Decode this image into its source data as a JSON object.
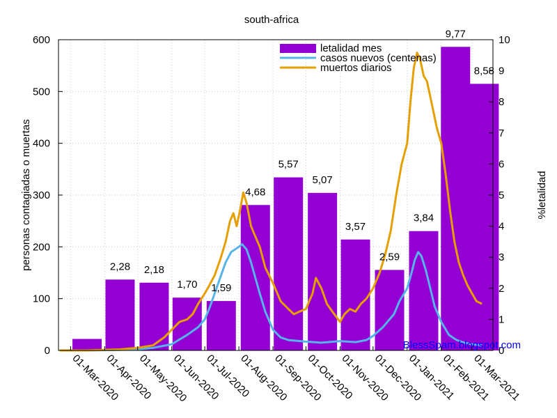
{
  "chart_data": {
    "type": "bar+line",
    "title": "south-africa",
    "ylabel_left": "personas contagiadas o muertas",
    "ylabel_right": "%letalidad",
    "ylim_left": [
      0,
      600
    ],
    "ylim_right": [
      0,
      10
    ],
    "yticks_left": [
      0,
      100,
      200,
      300,
      400,
      500,
      600
    ],
    "yticks_right": [
      0,
      1,
      2,
      3,
      4,
      5,
      6,
      7,
      8,
      9,
      10
    ],
    "xlim": [
      "2020-02-19",
      "2021-03-20"
    ],
    "xticks": [
      {
        "date": "2020-03-01",
        "label": "01-Mar-2020"
      },
      {
        "date": "2020-04-01",
        "label": "01-Apr-2020"
      },
      {
        "date": "2020-05-01",
        "label": "01-May-2020"
      },
      {
        "date": "2020-06-01",
        "label": "01-Jun-2020"
      },
      {
        "date": "2020-07-01",
        "label": "01-Jul-2020"
      },
      {
        "date": "2020-08-01",
        "label": "01-Aug-2020"
      },
      {
        "date": "2020-09-01",
        "label": "01-Sep-2020"
      },
      {
        "date": "2020-10-01",
        "label": "01-Oct-2020"
      },
      {
        "date": "2020-11-01",
        "label": "01-Nov-2020"
      },
      {
        "date": "2020-12-01",
        "label": "01-Dec-2020"
      },
      {
        "date": "2021-01-01",
        "label": "01-Jan-2021"
      },
      {
        "date": "2021-02-01",
        "label": "01-Feb-2021"
      },
      {
        "date": "2021-03-01",
        "label": "01-Mar-2021"
      }
    ],
    "grid": true,
    "legend_position": "top-right",
    "watermark": "BlessSpam.blogspot.com",
    "series": [
      {
        "name": "letalidad mes",
        "kind": "bar",
        "axis": "right",
        "color": "#9400d3",
        "points": [
          {
            "x": "2020-03-16",
            "y": 0.37,
            "label": ""
          },
          {
            "x": "2020-04-15",
            "y": 2.28,
            "label": "2,28"
          },
          {
            "x": "2020-05-16",
            "y": 2.18,
            "label": "2,18"
          },
          {
            "x": "2020-06-15",
            "y": 1.7,
            "label": "1,70"
          },
          {
            "x": "2020-07-16",
            "y": 1.59,
            "label": "1,59"
          },
          {
            "x": "2020-08-16",
            "y": 4.68,
            "label": "4,68"
          },
          {
            "x": "2020-09-15",
            "y": 5.57,
            "label": "5,57"
          },
          {
            "x": "2020-10-16",
            "y": 5.07,
            "label": "5,07"
          },
          {
            "x": "2020-11-15",
            "y": 3.57,
            "label": "3,57"
          },
          {
            "x": "2020-12-16",
            "y": 2.59,
            "label": "2,59"
          },
          {
            "x": "2021-01-16",
            "y": 3.84,
            "label": "3,84"
          },
          {
            "x": "2021-02-14",
            "y": 9.77,
            "label": "9,77"
          },
          {
            "x": "2021-03-12",
            "y": 8.58,
            "label": "8,58"
          }
        ]
      },
      {
        "name": "casos nuevos (centenas)",
        "kind": "line",
        "axis": "left",
        "color": "#56b4e9",
        "points": [
          [
            "2020-02-20",
            0
          ],
          [
            "2020-03-15",
            0
          ],
          [
            "2020-04-01",
            0.5
          ],
          [
            "2020-04-15",
            1
          ],
          [
            "2020-05-01",
            2
          ],
          [
            "2020-05-15",
            5
          ],
          [
            "2020-06-01",
            12
          ],
          [
            "2020-06-15",
            30
          ],
          [
            "2020-06-25",
            45
          ],
          [
            "2020-07-01",
            60
          ],
          [
            "2020-07-05",
            80
          ],
          [
            "2020-07-10",
            110
          ],
          [
            "2020-07-15",
            140
          ],
          [
            "2020-07-20",
            170
          ],
          [
            "2020-07-25",
            190
          ],
          [
            "2020-08-01",
            200
          ],
          [
            "2020-08-04",
            205
          ],
          [
            "2020-08-08",
            195
          ],
          [
            "2020-08-12",
            170
          ],
          [
            "2020-08-16",
            140
          ],
          [
            "2020-08-20",
            110
          ],
          [
            "2020-08-25",
            75
          ],
          [
            "2020-09-01",
            40
          ],
          [
            "2020-09-08",
            25
          ],
          [
            "2020-09-15",
            20
          ],
          [
            "2020-10-01",
            17
          ],
          [
            "2020-10-15",
            15
          ],
          [
            "2020-11-01",
            18
          ],
          [
            "2020-11-15",
            16
          ],
          [
            "2020-11-25",
            20
          ],
          [
            "2020-12-01",
            28
          ],
          [
            "2020-12-10",
            45
          ],
          [
            "2020-12-20",
            70
          ],
          [
            "2020-12-25",
            95
          ],
          [
            "2021-01-01",
            120
          ],
          [
            "2021-01-05",
            150
          ],
          [
            "2021-01-08",
            175
          ],
          [
            "2021-01-11",
            190
          ],
          [
            "2021-01-14",
            182
          ],
          [
            "2021-01-18",
            155
          ],
          [
            "2021-01-22",
            120
          ],
          [
            "2021-01-26",
            85
          ],
          [
            "2021-02-01",
            55
          ],
          [
            "2021-02-08",
            30
          ],
          [
            "2021-02-15",
            20
          ],
          [
            "2021-02-22",
            15
          ],
          [
            "2021-03-01",
            12
          ],
          [
            "2021-03-10",
            10
          ]
        ]
      },
      {
        "name": "muertos diarios",
        "kind": "line",
        "axis": "left",
        "color": "#e69f00",
        "points": [
          [
            "2020-02-20",
            0
          ],
          [
            "2020-03-15",
            0
          ],
          [
            "2020-04-01",
            1
          ],
          [
            "2020-04-15",
            2
          ],
          [
            "2020-05-01",
            5
          ],
          [
            "2020-05-15",
            10
          ],
          [
            "2020-05-25",
            25
          ],
          [
            "2020-06-01",
            40
          ],
          [
            "2020-06-08",
            55
          ],
          [
            "2020-06-15",
            60
          ],
          [
            "2020-06-20",
            70
          ],
          [
            "2020-06-25",
            90
          ],
          [
            "2020-07-01",
            110
          ],
          [
            "2020-07-05",
            125
          ],
          [
            "2020-07-10",
            145
          ],
          [
            "2020-07-15",
            175
          ],
          [
            "2020-07-20",
            210
          ],
          [
            "2020-07-24",
            250
          ],
          [
            "2020-07-27",
            265
          ],
          [
            "2020-07-30",
            240
          ],
          [
            "2020-08-02",
            270
          ],
          [
            "2020-08-05",
            305
          ],
          [
            "2020-08-08",
            285
          ],
          [
            "2020-08-12",
            240
          ],
          [
            "2020-08-15",
            225
          ],
          [
            "2020-08-20",
            200
          ],
          [
            "2020-08-25",
            160
          ],
          [
            "2020-09-01",
            130
          ],
          [
            "2020-09-08",
            95
          ],
          [
            "2020-09-15",
            80
          ],
          [
            "2020-09-20",
            70
          ],
          [
            "2020-09-25",
            75
          ],
          [
            "2020-10-01",
            80
          ],
          [
            "2020-10-07",
            110
          ],
          [
            "2020-10-10",
            140
          ],
          [
            "2020-10-15",
            120
          ],
          [
            "2020-10-20",
            90
          ],
          [
            "2020-10-25",
            75
          ],
          [
            "2020-11-01",
            55
          ],
          [
            "2020-11-05",
            70
          ],
          [
            "2020-11-10",
            80
          ],
          [
            "2020-11-15",
            75
          ],
          [
            "2020-11-20",
            90
          ],
          [
            "2020-11-25",
            100
          ],
          [
            "2020-12-01",
            120
          ],
          [
            "2020-12-07",
            150
          ],
          [
            "2020-12-12",
            185
          ],
          [
            "2020-12-17",
            230
          ],
          [
            "2020-12-22",
            300
          ],
          [
            "2020-12-27",
            360
          ],
          [
            "2021-01-01",
            400
          ],
          [
            "2021-01-04",
            480
          ],
          [
            "2021-01-07",
            545
          ],
          [
            "2021-01-10",
            575
          ],
          [
            "2021-01-13",
            560
          ],
          [
            "2021-01-16",
            530
          ],
          [
            "2021-01-19",
            520
          ],
          [
            "2021-01-22",
            490
          ],
          [
            "2021-01-25",
            460
          ],
          [
            "2021-01-28",
            430
          ],
          [
            "2021-02-01",
            400
          ],
          [
            "2021-02-05",
            340
          ],
          [
            "2021-02-09",
            270
          ],
          [
            "2021-02-13",
            210
          ],
          [
            "2021-02-17",
            170
          ],
          [
            "2021-02-21",
            145
          ],
          [
            "2021-02-25",
            125
          ],
          [
            "2021-03-01",
            110
          ],
          [
            "2021-03-05",
            95
          ],
          [
            "2021-03-10",
            90
          ]
        ]
      }
    ]
  }
}
